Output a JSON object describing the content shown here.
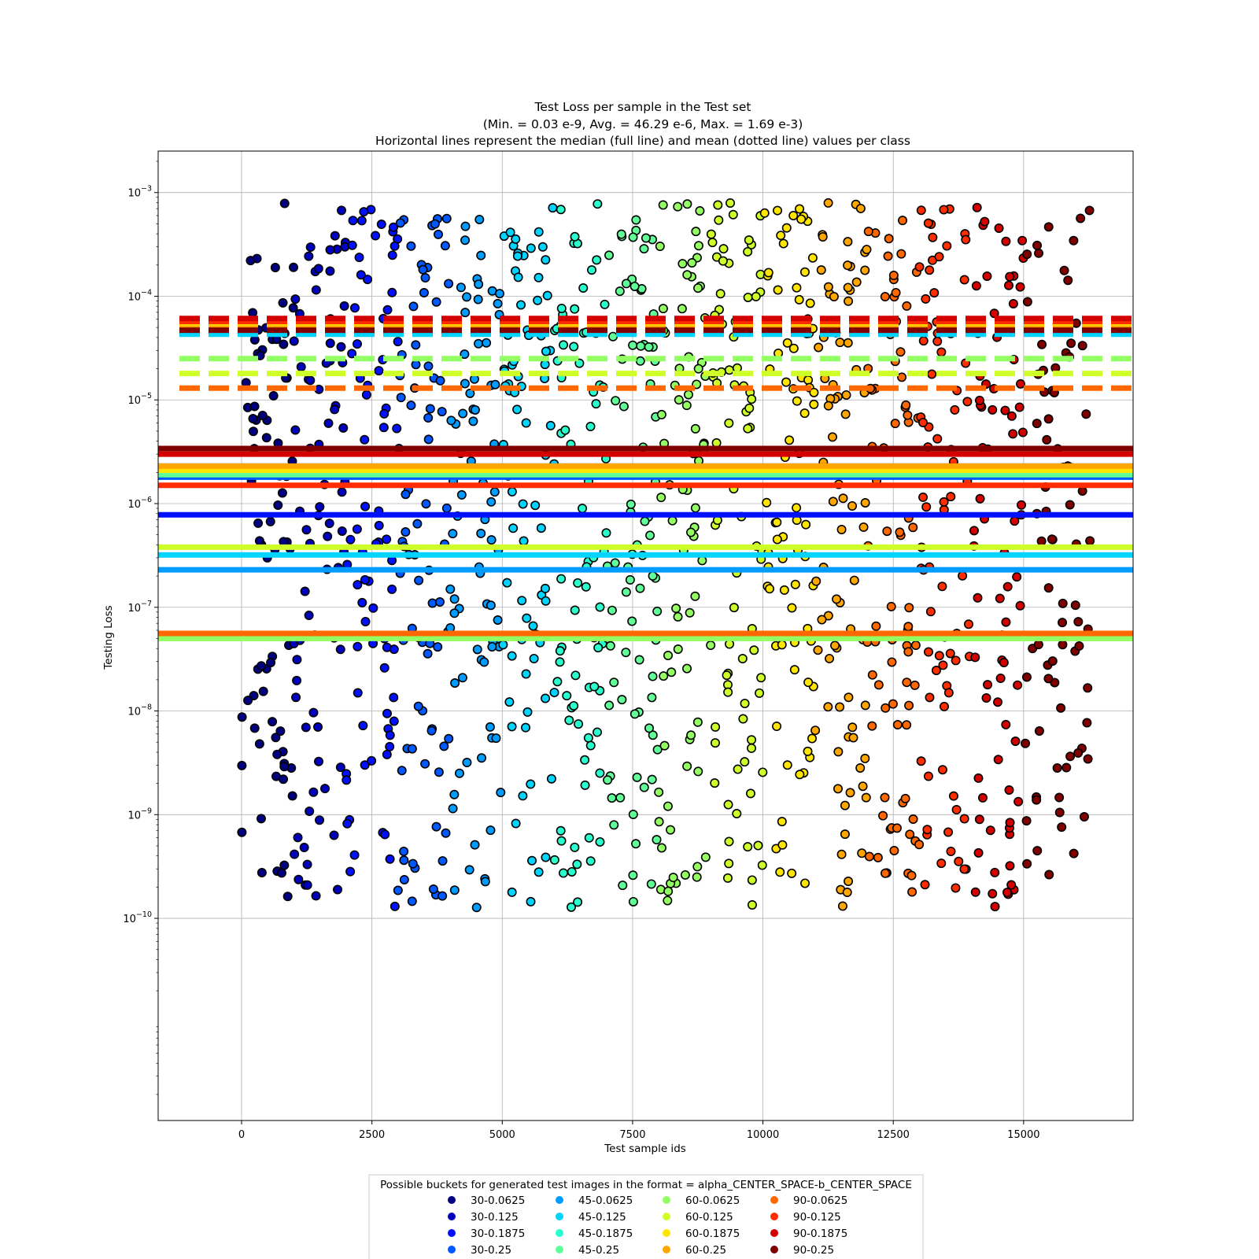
{
  "chart_data": {
    "type": "scatter",
    "title_lines": [
      "Test Loss per sample in the Test set",
      "(Min. =  0.03 e-9, Avg. =  46.29 e-6, Max. =  1.69 e-3)",
      "Horizontal lines represent the median (full line) and mean (dotted line) values per class"
    ],
    "xlabel": "Test sample ids",
    "ylabel": "Testing Loss",
    "xlim": [
      -1600,
      17100
    ],
    "ylim_log10": [
      -11.95,
      -2.6
    ],
    "yscale": "log",
    "xticks": [
      0,
      2500,
      5000,
      7500,
      10000,
      12500,
      15000
    ],
    "xtick_labels": [
      "0",
      "2500",
      "5000",
      "7500",
      "10000",
      "12500",
      "15000"
    ],
    "yticks_exp": [
      -10,
      -9,
      -8,
      -7,
      -6,
      -5,
      -4,
      -3
    ],
    "ytick_labels": [
      {
        "base": "10",
        "exp": "−10"
      },
      {
        "base": "10",
        "exp": "−9"
      },
      {
        "base": "10",
        "exp": "−8"
      },
      {
        "base": "10",
        "exp": "−7"
      },
      {
        "base": "10",
        "exp": "−6"
      },
      {
        "base": "10",
        "exp": "−5"
      },
      {
        "base": "10",
        "exp": "−4"
      },
      {
        "base": "10",
        "exp": "−3"
      }
    ],
    "grid": true,
    "legend": {
      "title": "Possible buckets for generated test images in the format = alpha_CENTER_SPACE-b_CENTER_SPACE",
      "placement": "bottom-center",
      "columns": 4,
      "entries": [
        {
          "label": "30-0.0625",
          "color": "#000080"
        },
        {
          "label": "30-0.125",
          "color": "#0000bf"
        },
        {
          "label": "30-0.1875",
          "color": "#0010ff"
        },
        {
          "label": "30-0.25",
          "color": "#0058ff"
        },
        {
          "label": "45-0.0625",
          "color": "#009cff"
        },
        {
          "label": "45-0.125",
          "color": "#00d4ff"
        },
        {
          "label": "45-0.1875",
          "color": "#29ffce"
        },
        {
          "label": "45-0.25",
          "color": "#60ff97"
        },
        {
          "label": "60-0.0625",
          "color": "#94ff63"
        },
        {
          "label": "60-0.125",
          "color": "#ceff29"
        },
        {
          "label": "60-0.1875",
          "color": "#ffe600"
        },
        {
          "label": "60-0.25",
          "color": "#ffa700"
        },
        {
          "label": "90-0.0625",
          "color": "#ff6800"
        },
        {
          "label": "90-0.125",
          "color": "#ff2d00"
        },
        {
          "label": "90-0.1875",
          "color": "#d40000"
        },
        {
          "label": "90-0.25",
          "color": "#800000"
        }
      ]
    },
    "series": [
      {
        "name": "30-0.0625",
        "color": "#000080",
        "x_range": [
          0,
          1000
        ],
        "median": 2.3e-06,
        "mean": 4.6e-05
      },
      {
        "name": "30-0.125",
        "color": "#0000bf",
        "x_range": [
          1000,
          2000
        ],
        "median": 2e-06,
        "mean": 5e-05
      },
      {
        "name": "30-0.1875",
        "color": "#0010ff",
        "x_range": [
          2000,
          3000
        ],
        "median": 7.8e-07,
        "mean": 5.2e-05
      },
      {
        "name": "30-0.25",
        "color": "#0058ff",
        "x_range": [
          3000,
          4000
        ],
        "median": 1.8e-06,
        "mean": 4.8e-05
      },
      {
        "name": "45-0.0625",
        "color": "#009cff",
        "x_range": [
          4000,
          5000
        ],
        "median": 2.3e-07,
        "mean": 4.4e-05
      },
      {
        "name": "45-0.125",
        "color": "#00d4ff",
        "x_range": [
          5000,
          6000
        ],
        "median": 3.2e-07,
        "mean": 4.3e-05
      },
      {
        "name": "45-0.1875",
        "color": "#29ffce",
        "x_range": [
          6000,
          7000
        ],
        "median": 2e-06,
        "mean": 5.6e-05
      },
      {
        "name": "45-0.25",
        "color": "#60ff97",
        "x_range": [
          7000,
          8000
        ],
        "median": 1.9e-06,
        "mean": 5.4e-05
      },
      {
        "name": "60-0.0625",
        "color": "#94ff63",
        "x_range": [
          8000,
          9000
        ],
        "median": 5e-08,
        "mean": 2.5e-05
      },
      {
        "name": "60-0.125",
        "color": "#ceff29",
        "x_range": [
          9000,
          10000
        ],
        "median": 3.8e-07,
        "mean": 1.8e-05
      },
      {
        "name": "60-0.1875",
        "color": "#ffe600",
        "x_range": [
          10000,
          11000
        ],
        "median": 2.1e-06,
        "mean": 5.3e-05
      },
      {
        "name": "60-0.25",
        "color": "#ffa700",
        "x_range": [
          11000,
          12000
        ],
        "median": 2.3e-06,
        "mean": 4.9e-05
      },
      {
        "name": "90-0.0625",
        "color": "#ff6800",
        "x_range": [
          12000,
          13000
        ],
        "median": 5.6e-08,
        "mean": 1.3e-05
      },
      {
        "name": "90-0.125",
        "color": "#ff2d00",
        "x_range": [
          13000,
          14000
        ],
        "median": 1.5e-06,
        "mean": 5.7e-05
      },
      {
        "name": "90-0.1875",
        "color": "#d40000",
        "x_range": [
          14000,
          15000
        ],
        "median": 3e-06,
        "mean": 6.1e-05
      },
      {
        "name": "90-0.25",
        "color": "#800000",
        "x_range": [
          15000,
          16300
        ],
        "median": 3.4e-06,
        "mean": 4.7e-05
      }
    ]
  }
}
